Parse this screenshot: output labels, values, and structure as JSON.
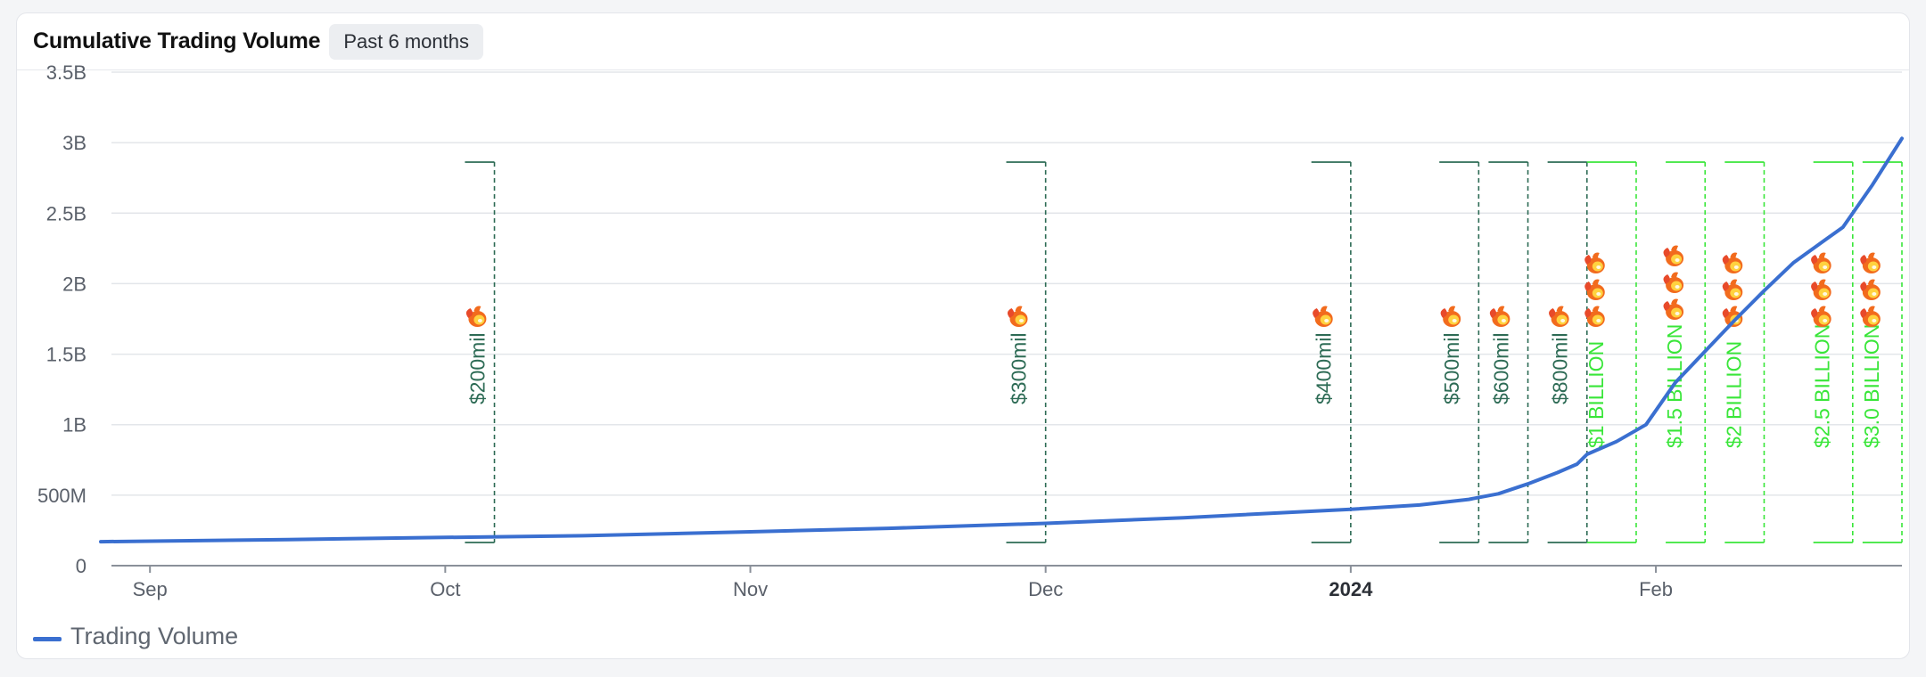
{
  "header": {
    "title": "Cumulative Trading Volume",
    "range_label": "Past 6 months"
  },
  "legend": {
    "series_label": "Trading Volume"
  },
  "colors": {
    "line": "#3a6fd0",
    "milestone_dark": "#2d6b55",
    "milestone_bright": "#39e639",
    "grid": "#e3e6ea",
    "tick_text": "#5a606a"
  },
  "chart_data": {
    "type": "line",
    "title": "Cumulative Trading Volume",
    "xlabel": "",
    "ylabel": "",
    "x_tick_labels": [
      "Sep",
      "Oct",
      "Nov",
      "Dec",
      "2024",
      "Feb"
    ],
    "x_tick_dates": [
      "2023-09-01",
      "2023-10-01",
      "2023-11-01",
      "2023-12-01",
      "2024-01-01",
      "2024-02-01"
    ],
    "xlim": [
      "2023-08-27",
      "2024-02-26"
    ],
    "y_tick_labels": [
      "0",
      "500M",
      "1B",
      "1.5B",
      "2B",
      "2.5B",
      "3B",
      "3.5B"
    ],
    "y_tick_values": [
      0,
      500000000,
      1000000000,
      1500000000,
      2000000000,
      2500000000,
      3000000000,
      3500000000
    ],
    "ylim": [
      0,
      3500000000
    ],
    "grid": true,
    "legend_position": "bottom-left",
    "series": [
      {
        "name": "Trading Volume",
        "points": [
          [
            "2023-08-27",
            170000000
          ],
          [
            "2023-09-15",
            185000000
          ],
          [
            "2023-10-01",
            200000000
          ],
          [
            "2023-10-15",
            212000000
          ],
          [
            "2023-11-01",
            240000000
          ],
          [
            "2023-11-15",
            265000000
          ],
          [
            "2023-12-01",
            300000000
          ],
          [
            "2023-12-15",
            340000000
          ],
          [
            "2024-01-01",
            400000000
          ],
          [
            "2024-01-08",
            430000000
          ],
          [
            "2024-01-13",
            470000000
          ],
          [
            "2024-01-16",
            510000000
          ],
          [
            "2024-01-19",
            580000000
          ],
          [
            "2024-01-22",
            660000000
          ],
          [
            "2024-01-24",
            720000000
          ],
          [
            "2024-01-25",
            790000000
          ],
          [
            "2024-01-28",
            880000000
          ],
          [
            "2024-01-31",
            1000000000
          ],
          [
            "2024-02-03",
            1300000000
          ],
          [
            "2024-02-06",
            1520000000
          ],
          [
            "2024-02-09",
            1740000000
          ],
          [
            "2024-02-12",
            1950000000
          ],
          [
            "2024-02-15",
            2150000000
          ],
          [
            "2024-02-18",
            2300000000
          ],
          [
            "2024-02-20",
            2400000000
          ],
          [
            "2024-02-23",
            2700000000
          ],
          [
            "2024-02-26",
            3030000000
          ]
        ]
      }
    ],
    "annotations": [
      {
        "label": "$200mil",
        "x_start": "2023-10-03",
        "x_end": "2023-10-06",
        "style": "dark",
        "fire_count": 1
      },
      {
        "label": "$300mil",
        "x_start": "2023-11-27",
        "x_end": "2023-12-01",
        "style": "dark",
        "fire_count": 1
      },
      {
        "label": "$400mil",
        "x_start": "2023-12-28",
        "x_end": "2024-01-01",
        "style": "dark",
        "fire_count": 1
      },
      {
        "label": "$500mil",
        "x_start": "2024-01-10",
        "x_end": "2024-01-14",
        "style": "dark",
        "fire_count": 1
      },
      {
        "label": "$600mil",
        "x_start": "2024-01-15",
        "x_end": "2024-01-19",
        "style": "dark",
        "fire_count": 1
      },
      {
        "label": "$800mil",
        "x_start": "2024-01-21",
        "x_end": "2024-01-25",
        "style": "dark",
        "fire_count": 1
      },
      {
        "label": "$1 BILLION",
        "x_start": "2024-01-25",
        "x_end": "2024-01-30",
        "style": "bright",
        "fire_count": 3
      },
      {
        "label": "$1.5 BILLION",
        "x_start": "2024-02-02",
        "x_end": "2024-02-06",
        "style": "bright",
        "fire_count": 3
      },
      {
        "label": "$2 BILLION",
        "x_start": "2024-02-08",
        "x_end": "2024-02-12",
        "style": "bright",
        "fire_count": 3
      },
      {
        "label": "$2.5 BILLION",
        "x_start": "2024-02-17",
        "x_end": "2024-02-21",
        "style": "bright",
        "fire_count": 3
      },
      {
        "label": "$3.0 BILLION",
        "x_start": "2024-02-22",
        "x_end": "2024-02-26",
        "style": "bright",
        "fire_count": 3
      }
    ],
    "annotation_icon": "fire-icon"
  }
}
